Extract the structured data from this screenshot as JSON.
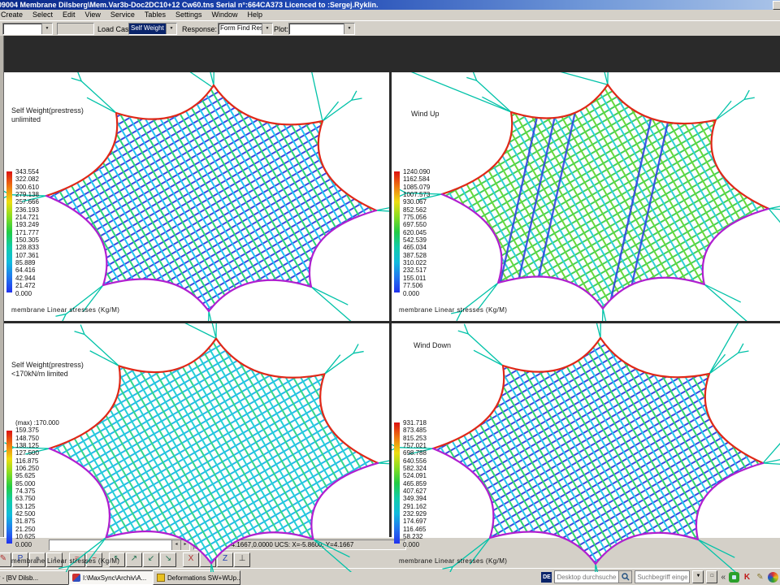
{
  "window": {
    "title": "09004 Membrane Dilsberg\\Mem.Var3b-Doc2DC10+12 Cw60.tns Serial n°:664CA373 Licenced to :Sergej.Ryklin.",
    "menu_items": [
      "Create",
      "Select",
      "Edit",
      "View",
      "Service",
      "Tables",
      "Settings",
      "Window",
      "Help"
    ]
  },
  "toolbar": {
    "combo1_value": "",
    "load_case_label": "Load Case:",
    "load_case_value": "Self Weight",
    "response_label": "Response:",
    "response_value": "Form Find Respor",
    "plot_label": "Plot:",
    "plot_value": ""
  },
  "viewports": [
    {
      "mesh_key": "tl",
      "title_lines": [
        "Self Weight(prestress)",
        "unlimited"
      ],
      "scale_values": [
        "343.554",
        "322.082",
        "300.610",
        "279.138",
        "257.666",
        "236.193",
        "214.721",
        "193.249",
        "171.777",
        "150.305",
        "128.833",
        "107.361",
        "85.889",
        "64.416",
        "42.944",
        "21.472",
        "0.000"
      ],
      "caption": "membrane Linear stresses (Kg/M)"
    },
    {
      "mesh_key": "tr",
      "title_lines": [
        "Wind Up"
      ],
      "scale_values": [
        "1240.090",
        "1162.584",
        "1085.079",
        "1007.573",
        "930.067",
        "852.562",
        "775.056",
        "697.550",
        "620.045",
        "542.539",
        "465.034",
        "387.528",
        "310.022",
        "232.517",
        "155.011",
        "77.506",
        "0.000"
      ],
      "caption": "membrane Linear stresses (Kg/M)"
    },
    {
      "mesh_key": "bl",
      "title_lines": [
        "Self Weight(prestress)",
        "<170kN/m limited"
      ],
      "scale_values": [
        "(max) :170.000",
        "159.375",
        "148.750",
        "138.125",
        "127.500",
        "116.875",
        "106.250",
        "95.625",
        "85.000",
        "74.375",
        "63.750",
        "53.125",
        "42.500",
        "31.875",
        "21.250",
        "10.625",
        "0.000"
      ],
      "caption": "membrane Linear stresses (Kg/M)"
    },
    {
      "mesh_key": "br",
      "title_lines": [
        "Wind Down"
      ],
      "scale_values": [
        "931.718",
        "873.485",
        "815.253",
        "757.021",
        "698.788",
        "640.556",
        "582.324",
        "524.091",
        "465.859",
        "407.627",
        "349.394",
        "291.162",
        "232.929",
        "174.697",
        "116.465",
        "58.232",
        "0.000"
      ],
      "caption": "membrane Linear stresses (Kg/M)"
    }
  ],
  "statusbar": {
    "command_value": "",
    "coords": "W:-5.8600,-4.1667,0.0000   UCS: X=-5.8600, Y=4.1667"
  },
  "bottom_toolbar": {
    "groups": [
      [
        "paint-icon",
        "point-p-icon",
        "pan-icon",
        "orbit-icon"
      ],
      [
        "polyline-icon",
        "spline-icon"
      ],
      [
        "view-upper-left-icon",
        "view-upper-right-icon",
        "view-lower-left-icon",
        "view-lower-right-icon"
      ],
      [
        "ucs-x-icon",
        "ucs-y-icon",
        "ucs-z-icon",
        "axis-isometric-icon"
      ]
    ]
  },
  "taskbar": {
    "tasks": [
      {
        "label": "cia Engineer - [BV Dilsb..."
      },
      {
        "label": "I:\\MaxSync\\Archiv\\A...",
        "active": true
      },
      {
        "label": "Deformations SW+WUp..."
      }
    ],
    "language_badge": "DE",
    "search_placeholder": "Desktop durchsucher",
    "search2_placeholder": "Suchbegriff einge...",
    "chevron": "«",
    "tray_k": "K"
  },
  "colors": {
    "titlebar_start": "#0b2a8a",
    "titlebar_end": "#a9c3e8",
    "chrome": "#d4d0c8",
    "combo_selected_bg": "#0a246a",
    "scale_gradient": [
      "#dd1111",
      "#ee7711",
      "#eedd11",
      "#88dd22",
      "#22cc44",
      "#11ccaa",
      "#11bbdd",
      "#2277ee",
      "#2233ee"
    ]
  },
  "mesh": {
    "tl": {
      "warp": "#3a49e0",
      "weft1": "#22c8ee",
      "weft2": "#2ad878",
      "edge_top": "#e02818",
      "edge_bottom": "#b01fd0",
      "guy": "#00c2a8",
      "extra": [
        [
          150,
          -36,
          226,
          16
        ],
        [
          340,
          -42,
          362,
          58
        ]
      ]
    },
    "tr": {
      "warp": "#43d058",
      "weft1": "#2fd0d8",
      "weft2": "#69d83a",
      "edge_top": "#e02818",
      "edge_bottom": "#b01fd0",
      "guy": "#00c2a8",
      "streaks": "#2a3fe0",
      "extra": [
        [
          -36,
          -10,
          108,
          48
        ],
        [
          16,
          -44,
          228,
          14
        ],
        [
          472,
          220,
          428,
          168
        ]
      ]
    },
    "bl": {
      "warp": "#28b6ea",
      "weft1": "#24d2d2",
      "weft2": "#34d88a",
      "edge_top": "#e02818",
      "edge_bottom": "#b01fd0",
      "guy": "#00c2a8",
      "extra": [
        [
          140,
          -30,
          228,
          14
        ]
      ]
    },
    "br": {
      "warp": "#3a49e0",
      "weft1": "#26cbe8",
      "weft2": "#30d86e",
      "edge_top": "#e02818",
      "edge_bottom": "#b01fd0",
      "guy": "#00c2a8",
      "extra": [
        [
          420,
          -44,
          362,
          58
        ],
        [
          470,
          120,
          428,
          168
        ]
      ]
    }
  }
}
